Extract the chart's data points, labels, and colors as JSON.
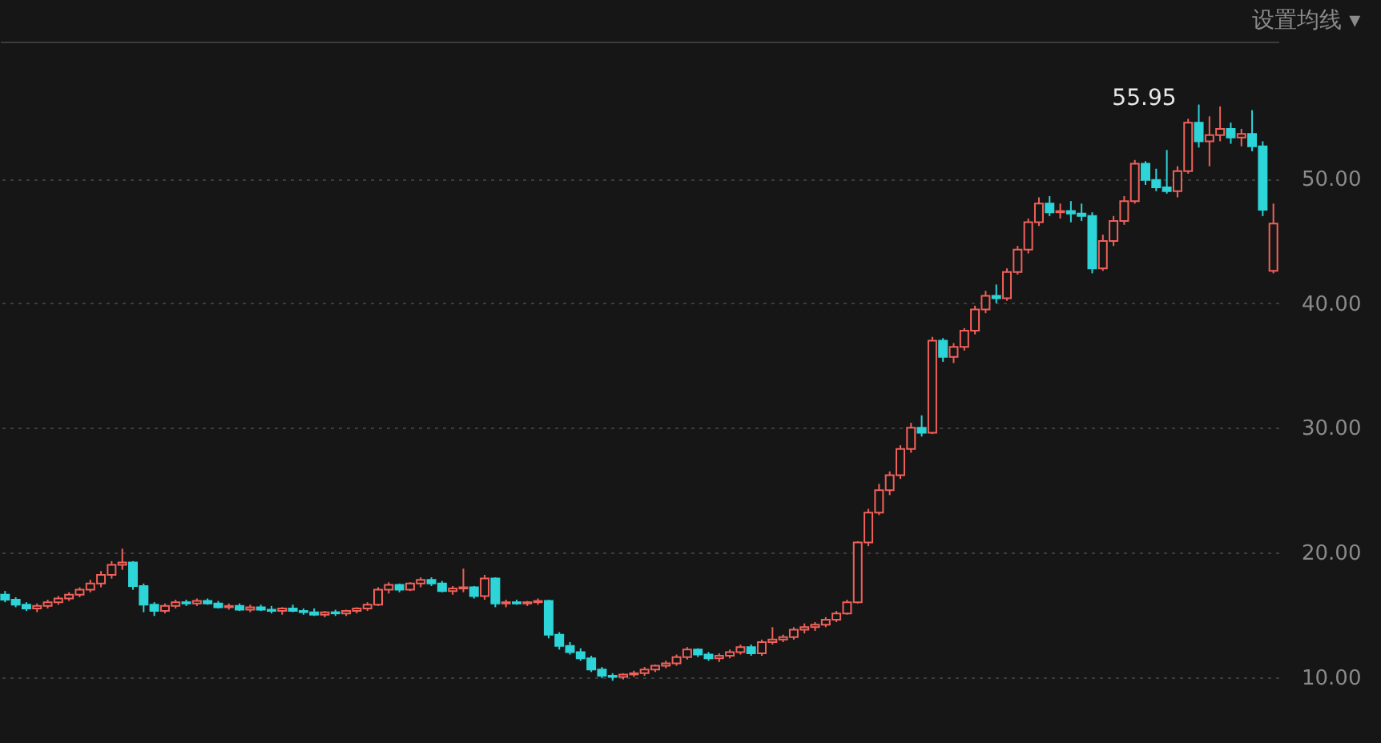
{
  "chart_data": {
    "type": "candlestick",
    "categories": [
      null,
      null,
      null,
      null,
      null,
      null,
      null,
      null,
      null,
      null,
      null,
      null,
      null,
      null,
      null,
      null,
      null,
      null,
      null,
      null,
      null,
      null,
      null,
      null,
      null,
      null,
      null,
      null,
      null,
      null,
      null,
      null,
      null,
      null,
      null,
      null,
      null,
      null,
      null,
      null,
      null,
      null,
      null,
      null,
      null,
      null,
      null,
      null,
      null,
      null,
      null,
      null,
      null,
      null,
      null,
      null,
      null,
      null,
      null,
      null,
      null,
      null,
      null,
      null,
      null,
      null,
      null,
      null,
      null,
      null,
      null,
      null,
      null,
      null,
      null,
      null,
      null,
      null,
      null,
      null,
      null,
      null,
      null,
      null,
      null,
      null,
      null,
      null,
      null,
      null,
      null,
      null,
      null,
      null,
      null,
      null,
      null,
      null,
      null,
      null,
      null,
      null,
      null,
      null,
      null,
      null,
      null,
      null,
      null,
      null,
      null,
      null,
      null,
      null,
      null,
      null,
      null,
      null,
      null,
      null
    ],
    "ohlc": [
      [
        16.6,
        16.9,
        16.0,
        16.2
      ],
      [
        16.2,
        16.4,
        15.6,
        15.8
      ],
      [
        15.8,
        16.0,
        15.3,
        15.5
      ],
      [
        15.5,
        15.9,
        15.2,
        15.7
      ],
      [
        15.7,
        16.2,
        15.5,
        16.0
      ],
      [
        16.0,
        16.5,
        15.8,
        16.3
      ],
      [
        16.3,
        16.8,
        16.1,
        16.6
      ],
      [
        16.6,
        17.2,
        16.4,
        17.0
      ],
      [
        17.0,
        17.8,
        16.8,
        17.5
      ],
      [
        17.5,
        18.5,
        17.2,
        18.2
      ],
      [
        18.2,
        19.3,
        17.9,
        19.0
      ],
      [
        19.0,
        20.3,
        18.6,
        19.2
      ],
      [
        19.2,
        19.3,
        17.0,
        17.3
      ],
      [
        17.3,
        17.5,
        15.2,
        15.8
      ],
      [
        15.8,
        16.0,
        14.9,
        15.3
      ],
      [
        15.3,
        15.9,
        15.1,
        15.7
      ],
      [
        15.7,
        16.2,
        15.5,
        16.0
      ],
      [
        16.0,
        16.2,
        15.7,
        15.9
      ],
      [
        15.9,
        16.3,
        15.7,
        16.1
      ],
      [
        16.1,
        16.3,
        15.8,
        15.9
      ],
      [
        15.9,
        16.1,
        15.5,
        15.6
      ],
      [
        15.6,
        15.9,
        15.4,
        15.7
      ],
      [
        15.7,
        15.9,
        15.3,
        15.4
      ],
      [
        15.4,
        15.8,
        15.2,
        15.6
      ],
      [
        15.6,
        15.8,
        15.3,
        15.4
      ],
      [
        15.4,
        15.7,
        15.1,
        15.3
      ],
      [
        15.3,
        15.6,
        15.0,
        15.5
      ],
      [
        15.5,
        15.8,
        15.2,
        15.3
      ],
      [
        15.3,
        15.5,
        15.0,
        15.2
      ],
      [
        15.2,
        15.5,
        14.9,
        15.0
      ],
      [
        15.0,
        15.3,
        14.8,
        15.2
      ],
      [
        15.2,
        15.4,
        14.9,
        15.1
      ],
      [
        15.1,
        15.4,
        14.9,
        15.3
      ],
      [
        15.3,
        15.6,
        15.1,
        15.5
      ],
      [
        15.5,
        16.0,
        15.3,
        15.8
      ],
      [
        15.8,
        17.2,
        15.7,
        17.0
      ],
      [
        17.0,
        17.6,
        16.7,
        17.4
      ],
      [
        17.4,
        17.5,
        16.8,
        17.0
      ],
      [
        17.0,
        17.6,
        16.9,
        17.5
      ],
      [
        17.5,
        18.0,
        17.2,
        17.8
      ],
      [
        17.8,
        18.0,
        17.3,
        17.5
      ],
      [
        17.5,
        17.7,
        16.8,
        16.9
      ],
      [
        16.9,
        17.3,
        16.6,
        17.1
      ],
      [
        17.1,
        18.7,
        16.8,
        17.2
      ],
      [
        17.2,
        17.3,
        16.3,
        16.5
      ],
      [
        16.5,
        18.2,
        16.2,
        17.9
      ],
      [
        17.9,
        18.0,
        15.6,
        15.9
      ],
      [
        15.9,
        16.2,
        15.6,
        16.0
      ],
      [
        16.0,
        16.2,
        15.8,
        15.9
      ],
      [
        15.9,
        16.1,
        15.7,
        16.0
      ],
      [
        16.0,
        16.3,
        15.8,
        16.1
      ],
      [
        16.1,
        16.2,
        13.1,
        13.4
      ],
      [
        13.4,
        13.6,
        12.2,
        12.5
      ],
      [
        12.5,
        12.8,
        11.8,
        12.0
      ],
      [
        12.0,
        12.3,
        11.3,
        11.5
      ],
      [
        11.5,
        11.7,
        10.4,
        10.6
      ],
      [
        10.6,
        10.8,
        9.9,
        10.1
      ],
      [
        10.1,
        10.3,
        9.7,
        10.0
      ],
      [
        10.0,
        10.3,
        9.8,
        10.2
      ],
      [
        10.2,
        10.5,
        10.0,
        10.3
      ],
      [
        10.3,
        10.8,
        10.1,
        10.6
      ],
      [
        10.6,
        11.0,
        10.4,
        10.9
      ],
      [
        10.9,
        11.3,
        10.7,
        11.1
      ],
      [
        11.1,
        11.8,
        10.9,
        11.6
      ],
      [
        11.6,
        12.4,
        11.4,
        12.2
      ],
      [
        12.2,
        12.3,
        11.6,
        11.8
      ],
      [
        11.8,
        12.0,
        11.3,
        11.5
      ],
      [
        11.5,
        11.9,
        11.2,
        11.7
      ],
      [
        11.7,
        12.2,
        11.5,
        12.0
      ],
      [
        12.0,
        12.6,
        11.8,
        12.4
      ],
      [
        12.4,
        12.6,
        11.7,
        11.9
      ],
      [
        11.9,
        13.0,
        11.7,
        12.8
      ],
      [
        12.8,
        14.0,
        12.6,
        13.0
      ],
      [
        13.0,
        13.4,
        12.8,
        13.2
      ],
      [
        13.2,
        14.0,
        13.0,
        13.8
      ],
      [
        13.8,
        14.3,
        13.5,
        14.0
      ],
      [
        14.0,
        14.4,
        13.7,
        14.2
      ],
      [
        14.2,
        14.8,
        14.0,
        14.6
      ],
      [
        14.6,
        15.3,
        14.4,
        15.1
      ],
      [
        15.1,
        16.2,
        15.0,
        16.0
      ],
      [
        16.0,
        20.9,
        15.9,
        20.8
      ],
      [
        20.8,
        23.5,
        20.5,
        23.2
      ],
      [
        23.2,
        25.5,
        23.0,
        25.0
      ],
      [
        25.0,
        26.5,
        24.6,
        26.2
      ],
      [
        26.2,
        28.6,
        25.9,
        28.3
      ],
      [
        28.3,
        30.4,
        28.0,
        30.0
      ],
      [
        30.0,
        31.0,
        29.3,
        29.6
      ],
      [
        29.6,
        37.3,
        29.5,
        37.0
      ],
      [
        37.0,
        37.2,
        35.3,
        35.7
      ],
      [
        35.7,
        36.8,
        35.2,
        36.5
      ],
      [
        36.5,
        38.0,
        36.2,
        37.8
      ],
      [
        37.8,
        39.8,
        37.5,
        39.5
      ],
      [
        39.5,
        41.0,
        39.2,
        40.6
      ],
      [
        40.6,
        41.5,
        40.0,
        40.4
      ],
      [
        40.4,
        42.8,
        40.2,
        42.5
      ],
      [
        42.5,
        44.6,
        42.3,
        44.3
      ],
      [
        44.3,
        46.8,
        44.0,
        46.5
      ],
      [
        46.5,
        48.5,
        46.2,
        48.0
      ],
      [
        48.0,
        48.6,
        47.0,
        47.3
      ],
      [
        47.3,
        48.0,
        46.8,
        47.4
      ],
      [
        47.4,
        48.2,
        46.5,
        47.2
      ],
      [
        47.2,
        48.0,
        46.6,
        47.0
      ],
      [
        47.0,
        47.3,
        42.4,
        42.8
      ],
      [
        42.8,
        45.5,
        42.6,
        45.0
      ],
      [
        45.0,
        47.0,
        44.6,
        46.6
      ],
      [
        46.6,
        48.6,
        46.3,
        48.2
      ],
      [
        48.2,
        51.5,
        48.0,
        51.2
      ],
      [
        51.2,
        51.4,
        49.5,
        49.9
      ],
      [
        49.9,
        50.8,
        49.0,
        49.3
      ],
      [
        49.3,
        52.3,
        48.8,
        49.0
      ],
      [
        49.0,
        51.0,
        48.5,
        50.6
      ],
      [
        50.6,
        54.8,
        50.4,
        54.5
      ],
      [
        54.5,
        55.95,
        52.5,
        53.0
      ],
      [
        53.0,
        55.0,
        51.0,
        53.5
      ],
      [
        53.5,
        55.8,
        53.0,
        54.0
      ],
      [
        54.0,
        54.5,
        52.8,
        53.3
      ],
      [
        53.3,
        54.0,
        52.6,
        53.6
      ],
      [
        53.6,
        55.5,
        52.2,
        52.6
      ],
      [
        52.6,
        53.0,
        47.0,
        47.5
      ],
      [
        42.6,
        48.0,
        42.4,
        46.4
      ]
    ],
    "colors": [
      "#2dd4d8",
      "#2dd4d8",
      "#2dd4d8",
      "#f0615a",
      "#f0615a",
      "#f0615a",
      "#f0615a",
      "#f0615a",
      "#f0615a",
      "#f0615a",
      "#f0615a",
      "#f0615a",
      "#2dd4d8",
      "#2dd4d8",
      "#2dd4d8",
      "#f0615a",
      "#f0615a",
      "#2dd4d8",
      "#f0615a",
      "#2dd4d8",
      "#2dd4d8",
      "#f0615a",
      "#2dd4d8",
      "#f0615a",
      "#2dd4d8",
      "#2dd4d8",
      "#f0615a",
      "#2dd4d8",
      "#2dd4d8",
      "#2dd4d8",
      "#f0615a",
      "#2dd4d8",
      "#f0615a",
      "#f0615a",
      "#f0615a",
      "#f0615a",
      "#f0615a",
      "#2dd4d8",
      "#f0615a",
      "#f0615a",
      "#2dd4d8",
      "#2dd4d8",
      "#f0615a",
      "#f0615a",
      "#2dd4d8",
      "#f0615a",
      "#2dd4d8",
      "#f0615a",
      "#2dd4d8",
      "#f0615a",
      "#f0615a",
      "#2dd4d8",
      "#2dd4d8",
      "#2dd4d8",
      "#2dd4d8",
      "#2dd4d8",
      "#2dd4d8",
      "#2dd4d8",
      "#f0615a",
      "#f0615a",
      "#f0615a",
      "#f0615a",
      "#f0615a",
      "#f0615a",
      "#f0615a",
      "#2dd4d8",
      "#2dd4d8",
      "#f0615a",
      "#f0615a",
      "#f0615a",
      "#2dd4d8",
      "#f0615a",
      "#f0615a",
      "#f0615a",
      "#f0615a",
      "#f0615a",
      "#f0615a",
      "#f0615a",
      "#f0615a",
      "#f0615a",
      "#f0615a",
      "#f0615a",
      "#f0615a",
      "#f0615a",
      "#f0615a",
      "#f0615a",
      "#2dd4d8",
      "#f0615a",
      "#2dd4d8",
      "#f0615a",
      "#f0615a",
      "#f0615a",
      "#f0615a",
      "#2dd4d8",
      "#f0615a",
      "#f0615a",
      "#f0615a",
      "#f0615a",
      "#2dd4d8",
      "#f0615a",
      "#2dd4d8",
      "#2dd4d8",
      "#2dd4d8",
      "#f0615a",
      "#f0615a",
      "#f0615a",
      "#f0615a",
      "#2dd4d8",
      "#2dd4d8",
      "#2dd4d8",
      "#f0615a",
      "#f0615a",
      "#2dd4d8",
      "#f0615a",
      "#f0615a",
      "#2dd4d8",
      "#f0615a",
      "#2dd4d8",
      "#2dd4d8",
      "#f0615a"
    ],
    "ylim": [
      4.7,
      61
    ],
    "yticks": [
      {
        "value": 10,
        "label": "10.00"
      },
      {
        "value": 20,
        "label": "20.00"
      },
      {
        "value": 30,
        "label": "30.00"
      },
      {
        "value": 40,
        "label": "40.00"
      },
      {
        "value": 50,
        "label": "50.00"
      }
    ],
    "grid": true,
    "annotations": [
      "设置均线 ▾",
      "55.95"
    ]
  }
}
